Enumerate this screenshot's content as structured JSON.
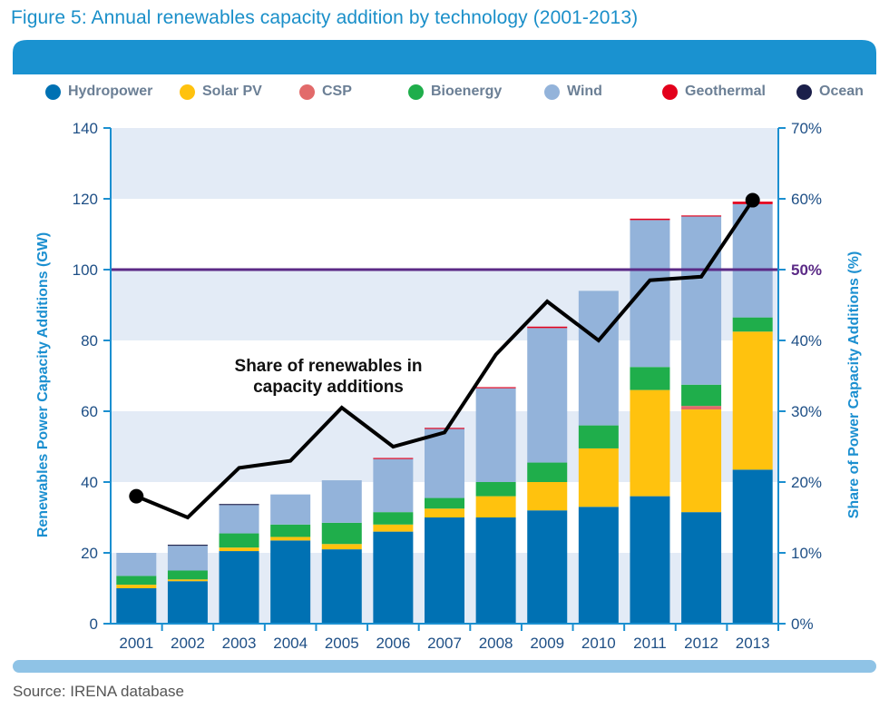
{
  "figure": {
    "title": "Figure 5: Annual renewables capacity addition by technology (2001-2013)",
    "source": "Source: IRENA database"
  },
  "colors": {
    "Hydropower": "#0071b3",
    "Solar PV": "#ffc20e",
    "CSP": "#e26a6a",
    "Bioenergy": "#1fae4b",
    "Wind": "#93b3da",
    "Geothermal": "#e3001b",
    "Ocean": "#1b1f4a",
    "share_line": "#000000",
    "ref_line": "#5b2a86",
    "axis": "#1b8fd0",
    "band": "#e3ebf6",
    "header_bar": "#1a92d0"
  },
  "chart_data": {
    "type": "bar",
    "stacked": true,
    "categories": [
      "2001",
      "2002",
      "2003",
      "2004",
      "2005",
      "2006",
      "2007",
      "2008",
      "2009",
      "2010",
      "2011",
      "2012",
      "2013"
    ],
    "ylabel": "Renewables Power Capacity Additions (GW)",
    "y2label": "Share of Power Capacity Additions (%)",
    "ylim": [
      0,
      140
    ],
    "y2lim": [
      0,
      70
    ],
    "yticks": [
      "0",
      "20",
      "40",
      "60",
      "80",
      "100",
      "120",
      "140"
    ],
    "y2ticks": [
      "0%",
      "10%",
      "20%",
      "30%",
      "40%",
      "50%",
      "60%",
      "70%"
    ],
    "legend_position": "top",
    "series": [
      {
        "name": "Hydropower",
        "values": [
          10,
          12,
          20.5,
          23.5,
          21,
          26,
          30,
          30,
          32,
          33,
          36,
          31.5,
          43.5
        ]
      },
      {
        "name": "Solar PV",
        "values": [
          1,
          0.5,
          1,
          1,
          1.5,
          2,
          2.5,
          6,
          8,
          16.5,
          30,
          29,
          39
        ]
      },
      {
        "name": "CSP",
        "values": [
          0,
          0,
          0,
          0,
          0,
          0,
          0,
          0,
          0,
          0,
          0,
          1,
          0
        ]
      },
      {
        "name": "Bioenergy",
        "values": [
          2.5,
          2.5,
          4,
          3.5,
          6,
          3.5,
          3,
          4,
          5.5,
          6.5,
          6.5,
          6,
          4
        ]
      },
      {
        "name": "Wind",
        "values": [
          6.5,
          7,
          8,
          8.5,
          12,
          15,
          19.5,
          26.5,
          38,
          38,
          41.5,
          47.5,
          32
        ]
      },
      {
        "name": "Geothermal",
        "values": [
          0,
          0,
          0,
          0,
          0,
          0.3,
          0.3,
          0.3,
          0.4,
          0,
          0.4,
          0.3,
          0.7
        ]
      },
      {
        "name": "Ocean",
        "values": [
          0,
          0.3,
          0.3,
          0,
          0,
          0,
          0,
          0,
          0,
          0,
          0,
          0,
          0
        ]
      }
    ],
    "share_line": {
      "values": [
        18,
        15,
        22,
        23,
        30.5,
        25,
        27,
        38,
        45.5,
        40,
        48.5,
        49,
        59.8
      ],
      "markers_at": [
        "2001",
        "2013"
      ]
    },
    "reference_line": {
      "value": 50,
      "label": "50%"
    },
    "annotation": "Share of renewables in capacity additions"
  }
}
